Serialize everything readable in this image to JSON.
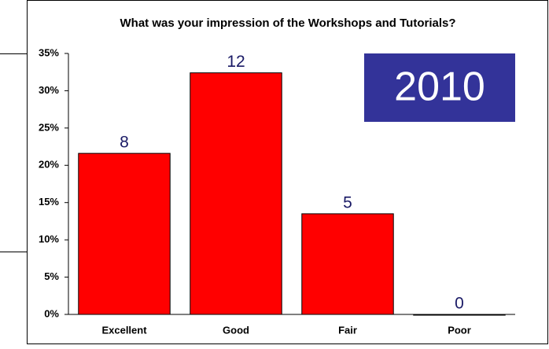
{
  "chart_data": {
    "type": "bar",
    "title": "What was your impression of the Workshops and Tutorials?",
    "categories": [
      "Excellent",
      "Good",
      "Fair",
      "Poor"
    ],
    "values": [
      21.6,
      32.4,
      13.5,
      0
    ],
    "counts": [
      8,
      12,
      5,
      0
    ],
    "color": "#ff0000",
    "ylim": [
      0,
      35
    ],
    "yticks": [
      {
        "value": 0,
        "label": "0%"
      },
      {
        "value": 5,
        "label": "5%"
      },
      {
        "value": 10,
        "label": "10%"
      },
      {
        "value": 15,
        "label": "15%"
      },
      {
        "value": 20,
        "label": "20%"
      },
      {
        "value": 25,
        "label": "25%"
      },
      {
        "value": 30,
        "label": "30%"
      },
      {
        "value": 35,
        "label": "35%"
      }
    ],
    "annotation": "2010",
    "grid": false
  }
}
